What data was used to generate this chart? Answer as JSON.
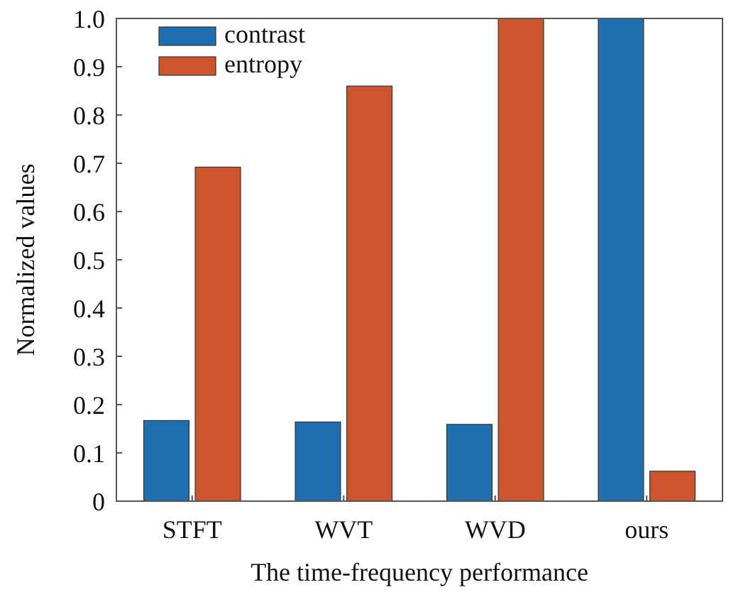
{
  "chart_data": {
    "type": "bar",
    "xlabel": "The time-frequency performance",
    "ylabel": "Normalized values",
    "categories": [
      "STFT",
      "WVT",
      "WVD",
      "ours"
    ],
    "series": [
      {
        "name": "contrast",
        "color": "#1f6eb0",
        "values": [
          0.167,
          0.164,
          0.159,
          1.0
        ]
      },
      {
        "name": "entropy",
        "color": "#cc552e",
        "values": [
          0.692,
          0.86,
          1.0,
          0.062
        ]
      }
    ],
    "ylim": [
      0,
      1
    ],
    "yticks": [
      0,
      0.1,
      0.2,
      0.3,
      0.4,
      0.5,
      0.6,
      0.7,
      0.8,
      0.9,
      {
        "value": 1,
        "label": "1.0"
      }
    ],
    "legend": "top left",
    "grid": false
  }
}
